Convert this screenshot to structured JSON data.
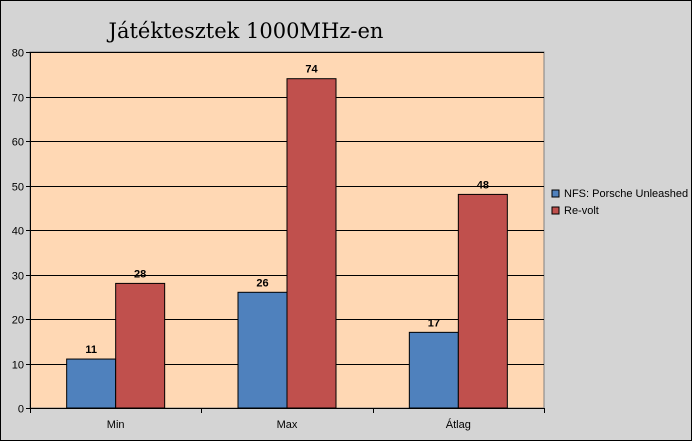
{
  "chart_data": {
    "type": "bar",
    "title": "Játéktesztek 1000MHz-en",
    "categories": [
      "Min",
      "Max",
      "Átlag"
    ],
    "series": [
      {
        "name": "NFS: Porsche Unleashed",
        "values": [
          11,
          26,
          17
        ],
        "color": "#4f81bd"
      },
      {
        "name": "Re-volt",
        "values": [
          28,
          74,
          48
        ],
        "color": "#c0504d"
      }
    ],
    "ylim": [
      0,
      80
    ],
    "yticks": [
      0,
      10,
      20,
      30,
      40,
      50,
      60,
      70,
      80
    ],
    "grid": true,
    "legend": "right",
    "plot_background": "#ffd8b4",
    "chart_background": "#d4d4d4"
  }
}
